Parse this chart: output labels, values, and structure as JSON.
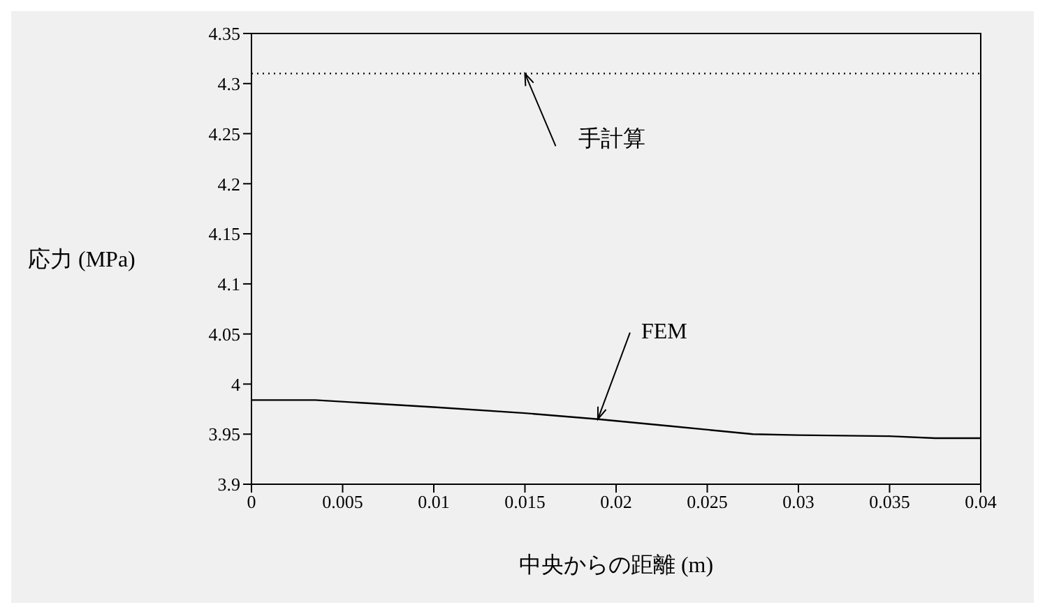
{
  "chart_data": {
    "type": "line",
    "xlabel": "中央からの距離 (m)",
    "ylabel": "応力 (MPa)",
    "xlim": [
      0,
      0.04
    ],
    "xticks": [
      0,
      0.005,
      0.01,
      0.015,
      0.02,
      0.025,
      0.03,
      0.035,
      0.04
    ],
    "ylim": [
      3.9,
      4.35
    ],
    "yticks": [
      3.9,
      3.95,
      4,
      4.05,
      4.1,
      4.15,
      4.2,
      4.25,
      4.3,
      4.35
    ],
    "grid": false,
    "marker": "none",
    "series": [
      {
        "color": "#000000",
        "line_style": "dotted",
        "x": [
          0,
          0.04
        ],
        "values": [
          4.31,
          4.31
        ]
      },
      {
        "color": "#000000",
        "line_style": "solid",
        "x": [
          0,
          0.0035,
          0.01,
          0.015,
          0.019,
          0.023,
          0.0275,
          0.03,
          0.035,
          0.0375,
          0.04
        ],
        "values": [
          3.984,
          3.984,
          3.977,
          3.971,
          3.965,
          3.958,
          3.95,
          3.949,
          3.948,
          3.946,
          3.946
        ]
      }
    ],
    "annotations": [
      {
        "text": "手計算",
        "x": 0.015,
        "y": 4.31
      },
      {
        "text": "FEM",
        "x": 0.019,
        "y": 3.965
      }
    ]
  }
}
